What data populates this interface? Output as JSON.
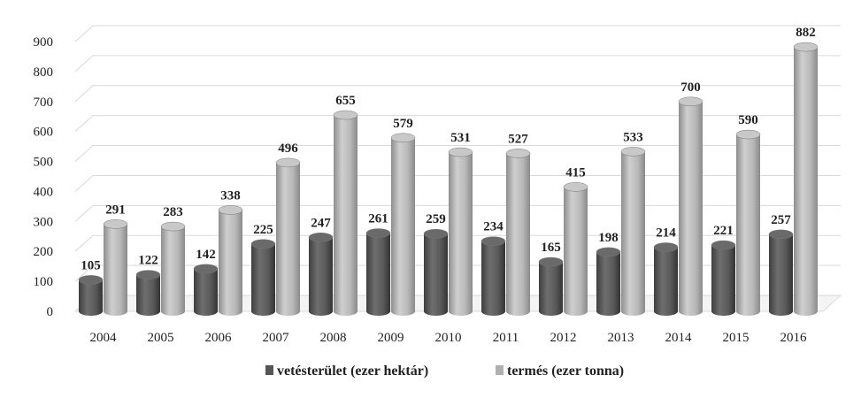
{
  "chart_data": {
    "type": "bar",
    "categories": [
      "2004",
      "2005",
      "2006",
      "2007",
      "2008",
      "2009",
      "2010",
      "2011",
      "2012",
      "2013",
      "2014",
      "2015",
      "2016"
    ],
    "series": [
      {
        "name": "vetésterület (ezer hektár)",
        "values": [
          105,
          122,
          142,
          225,
          247,
          261,
          259,
          234,
          165,
          198,
          214,
          221,
          257
        ],
        "color": "#5c5c5c"
      },
      {
        "name": "termés (ezer tonna)",
        "values": [
          291,
          283,
          338,
          496,
          655,
          579,
          531,
          527,
          415,
          533,
          700,
          590,
          882
        ],
        "color": "#b4b4b4"
      }
    ],
    "y_ticks": [
      "0",
      "100",
      "200",
      "300",
      "400",
      "500",
      "600",
      "700",
      "800",
      "900"
    ],
    "ylim": [
      0,
      900
    ],
    "title": "",
    "xlabel": "",
    "ylabel": "",
    "grid": true,
    "legend_position": "bottom"
  }
}
